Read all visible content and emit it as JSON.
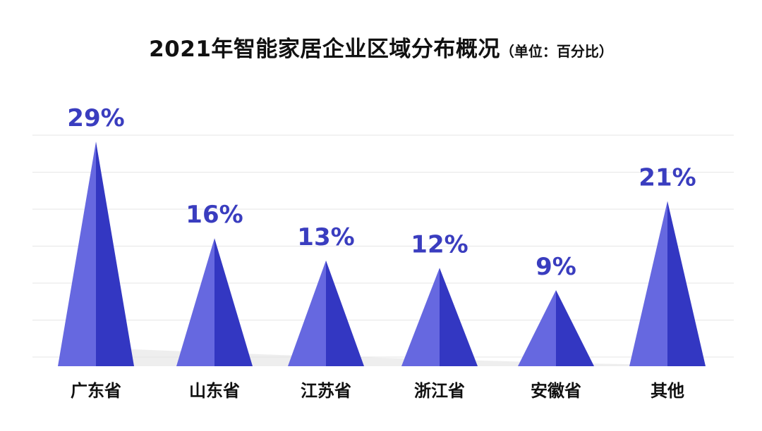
{
  "chart_data": {
    "type": "bar",
    "title": "2021年智能家居企业区域分布概况",
    "subtitle": "（单位：百分比）",
    "categories": [
      "广东省",
      "山东省",
      "江苏省",
      "浙江省",
      "安徽省",
      "其他"
    ],
    "values": [
      29,
      16,
      13,
      12,
      9,
      21
    ],
    "data_labels": [
      "29%",
      "16%",
      "13%",
      "12%",
      "9%",
      "21%"
    ],
    "ylim": [
      0,
      30
    ],
    "grid": true,
    "legend": "none",
    "colors": {
      "light_face": "#6668e0",
      "dark_face": "#3337c2",
      "label": "#3a3dbf",
      "category": "#111111",
      "grid": "#e6e6e6",
      "shadow": "#e3e3e3"
    }
  }
}
